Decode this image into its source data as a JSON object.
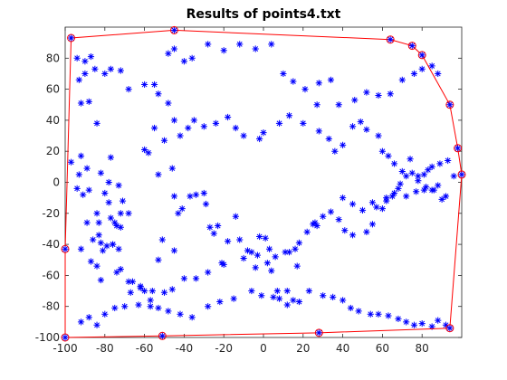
{
  "chart_data": {
    "type": "scatter",
    "title": "Results of points4.txt",
    "xlabel": "",
    "ylabel": "",
    "xlim": [
      -100,
      100
    ],
    "ylim": [
      -100,
      100
    ],
    "x_ticks": [
      -100,
      -80,
      -60,
      -40,
      -20,
      0,
      20,
      40,
      60,
      80
    ],
    "y_ticks": [
      -100,
      -80,
      -60,
      -40,
      -20,
      0,
      20,
      40,
      60,
      80
    ],
    "grid": false,
    "series": [
      {
        "kind": "points",
        "marker": "asterisk",
        "color": "#0000ff",
        "x": [
          -94,
          -90,
          -87,
          -93,
          -92,
          -88,
          -84,
          -92,
          -89,
          -82,
          -77,
          -78,
          -84,
          -83,
          -78,
          -73,
          -72,
          -74,
          -72,
          -92,
          -87,
          -84,
          -82,
          -79,
          -76,
          -72,
          -68,
          -67,
          -62,
          -57,
          -53,
          -51,
          -45,
          -43,
          -45,
          -41,
          -37,
          -34,
          -30,
          -29,
          -27,
          -25,
          -18,
          -23,
          -14,
          -12,
          -8,
          -3,
          -2,
          1,
          3,
          4,
          7,
          12,
          8,
          15,
          16,
          17,
          -55,
          -50,
          -42,
          -58,
          -46,
          -53,
          -60,
          -68,
          -75,
          -77,
          -71,
          -80,
          -88,
          -94,
          -97,
          -93,
          -91,
          -89,
          -86,
          -83,
          -82,
          -81,
          -76,
          -73,
          -74,
          -66,
          -62,
          -60,
          -56,
          -50,
          -46,
          -40,
          -34,
          -28,
          -21,
          -20,
          -10,
          -6,
          -4,
          2,
          6,
          11,
          13,
          18,
          22,
          25,
          26,
          27,
          30,
          34,
          38,
          41,
          45,
          52,
          55,
          57,
          60,
          62,
          65,
          68,
          69,
          75,
          72,
          78,
          81,
          85,
          88,
          90,
          92,
          -90,
          -85,
          -80,
          -77,
          -72,
          -68,
          -60,
          -53,
          -48,
          -45,
          -38,
          -35,
          -30,
          -24,
          -18,
          -14,
          -10,
          -2,
          0,
          8,
          13,
          20,
          27,
          28,
          33,
          36,
          40,
          45,
          49,
          52,
          58,
          60,
          63,
          66,
          70,
          74,
          78,
          81,
          83,
          85,
          89,
          93,
          96,
          -92,
          -88,
          -84,
          -80,
          -75,
          -70,
          -63,
          -57,
          -53,
          -48,
          -42,
          -36,
          -28,
          -22,
          -15,
          -6,
          -1,
          5,
          12,
          18,
          23,
          30,
          35,
          40,
          44,
          48,
          54,
          58,
          63,
          68,
          72,
          76,
          80,
          85,
          88,
          92,
          -55,
          -48,
          -45,
          -40,
          -36,
          -28,
          -20,
          -12,
          -4,
          4,
          10,
          15,
          21,
          28,
          34,
          38,
          46,
          52,
          58,
          64,
          70,
          76,
          80,
          85,
          88,
          40,
          45,
          50,
          55,
          62,
          66,
          72,
          77,
          82,
          86
        ],
        "y": [
          80,
          78,
          81,
          66,
          51,
          52,
          38,
          17,
          9,
          6,
          16,
          0,
          -20,
          -26,
          -13,
          -2,
          -20,
          -28,
          -29,
          -43,
          -51,
          -54,
          -63,
          -41,
          -40,
          -56,
          -64,
          -71,
          -68,
          -76,
          -50,
          -37,
          -44,
          -20,
          -9,
          -17,
          -9,
          -8,
          -7,
          -14,
          -29,
          -33,
          -38,
          -28,
          -22,
          -37,
          -44,
          -47,
          -35,
          -36,
          -43,
          -57,
          -70,
          -70,
          -75,
          -76,
          -43,
          -54,
          35,
          27,
          30,
          19,
          9,
          5,
          21,
          -20,
          -26,
          -23,
          -12,
          -7,
          -5,
          -4,
          13,
          5,
          -8,
          -26,
          -37,
          -34,
          -39,
          -44,
          -40,
          -43,
          -58,
          -64,
          -67,
          -70,
          -70,
          -71,
          -69,
          -62,
          -62,
          -58,
          -52,
          -53,
          -49,
          -45,
          -55,
          -52,
          -48,
          -45,
          -45,
          -39,
          -32,
          -27,
          -26,
          -28,
          -22,
          -19,
          -24,
          -31,
          -34,
          -32,
          -27,
          -16,
          -17,
          -12,
          -9,
          -4,
          -1,
          6,
          4,
          1,
          -5,
          -5,
          -2,
          -11,
          -9,
          70,
          73,
          70,
          73,
          72,
          60,
          63,
          57,
          51,
          40,
          35,
          40,
          36,
          38,
          42,
          35,
          30,
          28,
          32,
          38,
          43,
          38,
          50,
          33,
          28,
          20,
          24,
          36,
          39,
          34,
          30,
          20,
          17,
          12,
          7,
          15,
          4,
          5,
          8,
          10,
          12,
          14,
          4,
          -90,
          -87,
          -92,
          -85,
          -81,
          -80,
          -79,
          -80,
          -81,
          -83,
          -85,
          -87,
          -80,
          -77,
          -75,
          -70,
          -73,
          -74,
          -79,
          -77,
          -70,
          -73,
          -74,
          -76,
          -81,
          -83,
          -85,
          -85,
          -86,
          -88,
          -90,
          -92,
          -91,
          -93,
          -89,
          -92,
          63,
          83,
          86,
          78,
          80,
          89,
          85,
          89,
          86,
          89,
          70,
          65,
          60,
          64,
          66,
          50,
          53,
          58,
          56,
          57,
          66,
          70,
          73,
          75,
          70,
          -10,
          -14,
          -18,
          -13,
          -10,
          -7,
          -9,
          -6,
          -3,
          -5
        ]
      },
      {
        "kind": "hull",
        "color": "#ff0000",
        "marker": "circle",
        "x": [
          -100,
          -97,
          -45,
          64,
          75,
          80,
          94,
          98,
          100,
          94,
          28,
          -51,
          -100,
          -100
        ],
        "y": [
          -43,
          93,
          98,
          92,
          88,
          82,
          50,
          22,
          5,
          -94,
          -97,
          -99,
          -100,
          -43
        ]
      }
    ]
  }
}
